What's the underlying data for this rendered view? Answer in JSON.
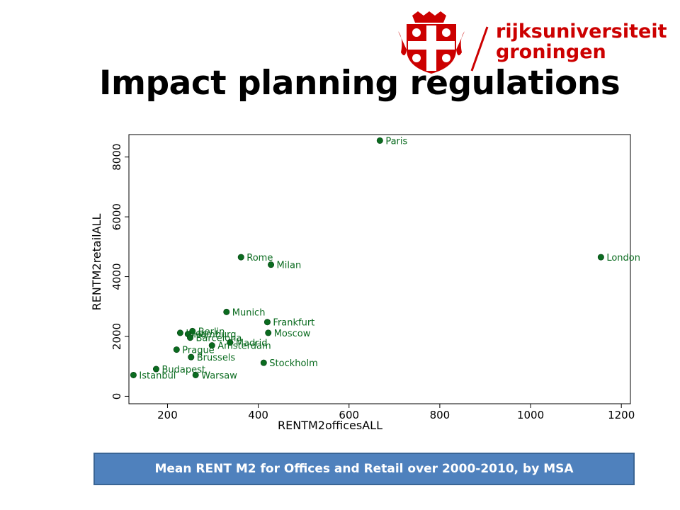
{
  "header": {
    "logo_lines": [
      "rijksuniversiteit",
      "groningen"
    ],
    "title": "Impact planning regulations"
  },
  "caption": "Mean RENT M2 for Offices and Retail over 2000-2010, by MSA",
  "colors": {
    "logo_red": "#cc0000",
    "point": "#0a6b1f",
    "caption_bg": "#4f81bd"
  },
  "chart_data": {
    "type": "scatter",
    "xlabel": "RENTM2officesALL",
    "ylabel": "RENTM2retailALL",
    "xlim": [
      115,
      1220
    ],
    "ylim": [
      -250,
      8750
    ],
    "xticks": [
      200,
      400,
      600,
      800,
      1000,
      1200
    ],
    "yticks": [
      0,
      2000,
      4000,
      6000,
      8000
    ],
    "grid": false,
    "points": [
      {
        "label": "Paris",
        "x": 668,
        "y": 8550
      },
      {
        "label": "London",
        "x": 1155,
        "y": 4650
      },
      {
        "label": "Rome",
        "x": 362,
        "y": 4650
      },
      {
        "label": "Milan",
        "x": 428,
        "y": 4400
      },
      {
        "label": "Munich",
        "x": 330,
        "y": 2820
      },
      {
        "label": "Frankfurt",
        "x": 420,
        "y": 2480
      },
      {
        "label": "Berlin",
        "x": 255,
        "y": 2180
      },
      {
        "label": "Hamburg",
        "x": 245,
        "y": 2080
      },
      {
        "label": "Moscow",
        "x": 422,
        "y": 2120
      },
      {
        "label": "Lyon",
        "x": 228,
        "y": 2120
      },
      {
        "label": "Barcelona",
        "x": 250,
        "y": 1960
      },
      {
        "label": "Madrid",
        "x": 338,
        "y": 1800
      },
      {
        "label": "Amsterdam",
        "x": 298,
        "y": 1700
      },
      {
        "label": "Prague",
        "x": 220,
        "y": 1560
      },
      {
        "label": "Brussels",
        "x": 252,
        "y": 1310
      },
      {
        "label": "Stockholm",
        "x": 412,
        "y": 1120
      },
      {
        "label": "Budapest",
        "x": 175,
        "y": 910
      },
      {
        "label": "Istanbul",
        "x": 125,
        "y": 710
      },
      {
        "label": "Warsaw",
        "x": 262,
        "y": 710
      }
    ]
  }
}
